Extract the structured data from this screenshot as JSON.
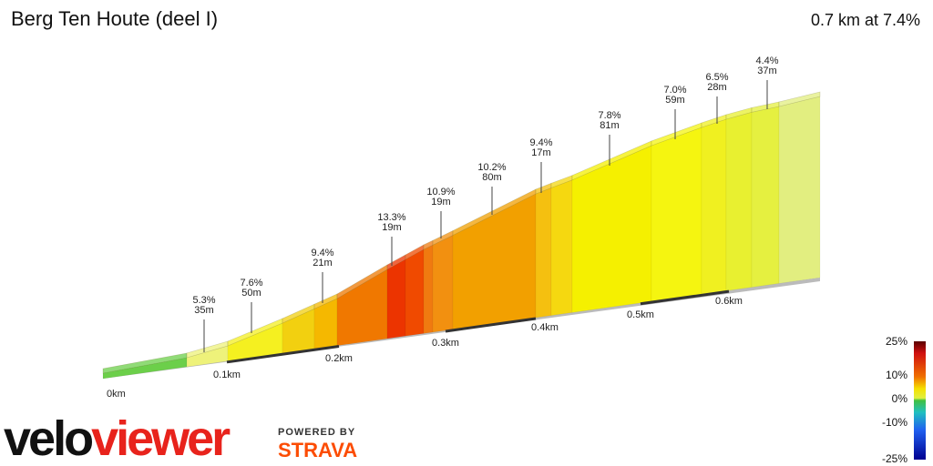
{
  "header": {
    "title": "Berg Ten Houte (deel I)",
    "summary": "0.7 km at 7.4%"
  },
  "segments": [
    {
      "grade": "5.3%",
      "length": "35m"
    },
    {
      "grade": "7.6%",
      "length": "50m"
    },
    {
      "grade": "9.4%",
      "length": "21m"
    },
    {
      "grade": "13.3%",
      "length": "19m"
    },
    {
      "grade": "10.9%",
      "length": "19m"
    },
    {
      "grade": "10.2%",
      "length": "80m"
    },
    {
      "grade": "9.4%",
      "length": "17m"
    },
    {
      "grade": "7.8%",
      "length": "81m"
    },
    {
      "grade": "7.0%",
      "length": "59m"
    },
    {
      "grade": "6.5%",
      "length": "28m"
    },
    {
      "grade": "4.4%",
      "length": "37m"
    }
  ],
  "distance_labels": [
    "0km",
    "0.1km",
    "0.2km",
    "0.3km",
    "0.4km",
    "0.5km",
    "0.6km"
  ],
  "legend": {
    "labels": [
      "25%",
      "10%",
      "0%",
      "-10%",
      "-25%"
    ]
  },
  "branding": {
    "logo_part1": "velo",
    "logo_part2": "viewer",
    "powered_by": "POWERED BY",
    "strava": "STRAVA"
  }
}
